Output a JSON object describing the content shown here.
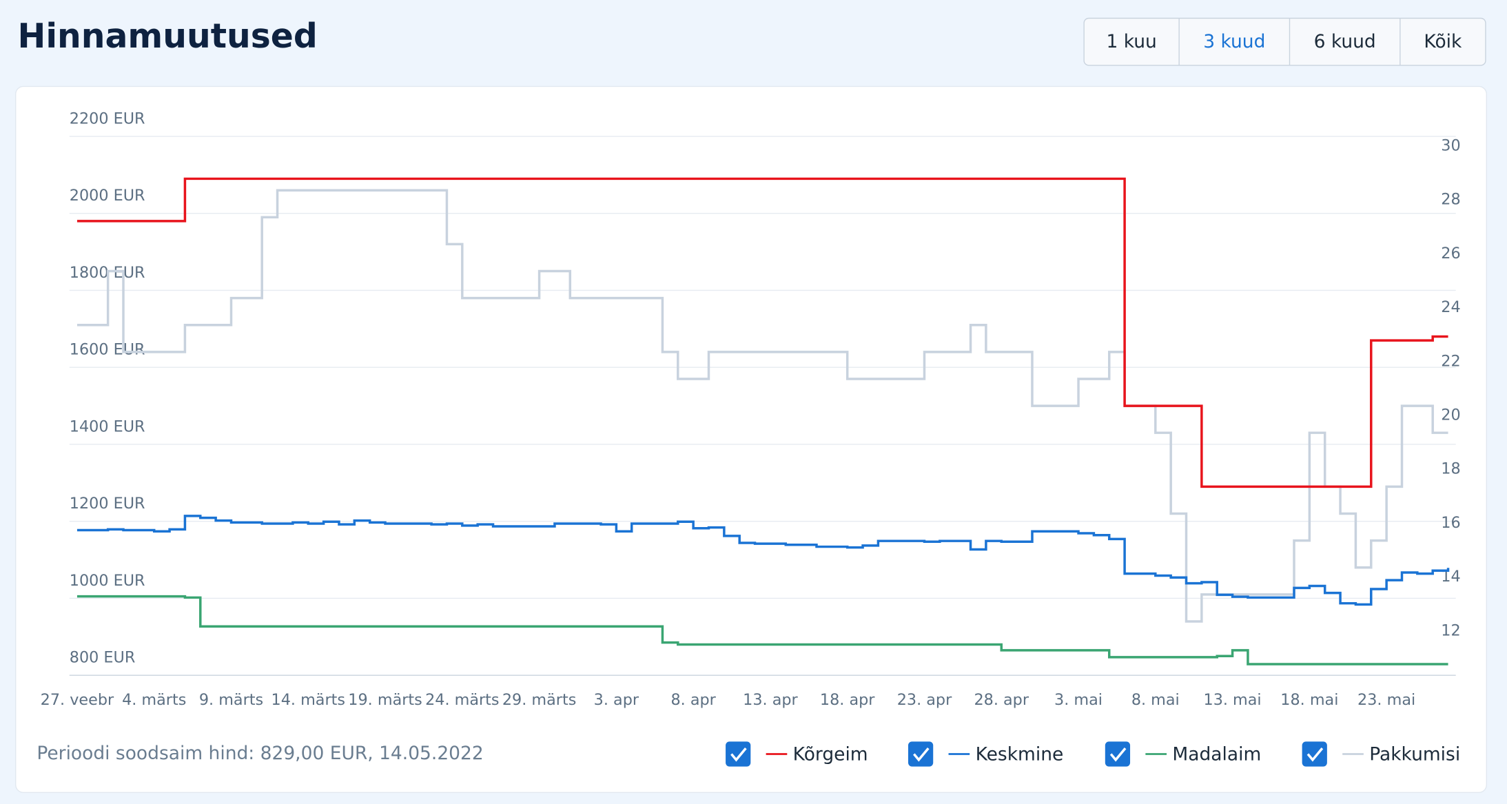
{
  "header": {
    "title": "Hinnamuutused",
    "ranges": [
      "1 kuu",
      "3 kuud",
      "6 kuud",
      "Kõik"
    ],
    "active_range": 1
  },
  "chart_data": {
    "type": "line",
    "step": true,
    "footer_note": "Perioodi soodsaim hind: 829,00 EUR, 14.05.2022",
    "categories": [
      "27. veebr",
      null,
      null,
      null,
      null,
      "4. märts",
      null,
      null,
      null,
      null,
      "9. märts",
      null,
      null,
      null,
      null,
      "14. märts",
      null,
      null,
      null,
      null,
      "19. märts",
      null,
      null,
      null,
      null,
      "24. märts",
      null,
      null,
      null,
      null,
      "29. märts",
      null,
      null,
      null,
      null,
      "3. apr",
      null,
      null,
      null,
      null,
      "8. apr",
      null,
      null,
      null,
      null,
      "13. apr",
      null,
      null,
      null,
      null,
      "18. apr",
      null,
      null,
      null,
      null,
      "23. apr",
      null,
      null,
      null,
      null,
      "28. apr",
      null,
      null,
      null,
      null,
      "3. mai",
      null,
      null,
      null,
      null,
      "8. mai",
      null,
      null,
      null,
      null,
      "13. mai",
      null,
      null,
      null,
      null,
      "18. mai",
      null,
      null,
      null,
      null,
      "23. mai",
      null,
      null,
      null,
      null
    ],
    "ylim": [
      800,
      2200
    ],
    "yticks": [
      {
        "value": 800,
        "label": "800 EUR"
      },
      {
        "value": 1000,
        "label": "1000 EUR"
      },
      {
        "value": 1200,
        "label": "1200 EUR"
      },
      {
        "value": 1400,
        "label": "1400 EUR"
      },
      {
        "value": 1600,
        "label": "1600 EUR"
      },
      {
        "value": 1800,
        "label": "1800 EUR"
      },
      {
        "value": 2000,
        "label": "2000 EUR"
      },
      {
        "value": 2200,
        "label": "2200 EUR"
      }
    ],
    "y2lim": [
      10,
      30
    ],
    "y2ticks": [
      12,
      14,
      16,
      18,
      20,
      22,
      24,
      26,
      28,
      30
    ],
    "grid": true,
    "series": [
      {
        "name": "Kõrgeim",
        "color": "#e8141c",
        "values": [
          1980,
          1980,
          1980,
          1980,
          1980,
          1980,
          1980,
          2090,
          2090,
          2090,
          2090,
          2090,
          2090,
          2090,
          2090,
          2090,
          2090,
          2090,
          2090,
          2090,
          2090,
          2090,
          2090,
          2090,
          2090,
          2090,
          2090,
          2090,
          2090,
          2090,
          2090,
          2090,
          2090,
          2090,
          2090,
          2090,
          2090,
          2090,
          2090,
          2090,
          2090,
          2090,
          2090,
          2090,
          2090,
          2090,
          2090,
          2090,
          2090,
          2090,
          2090,
          2090,
          2090,
          2090,
          2090,
          2090,
          2090,
          2090,
          2090,
          2090,
          2090,
          2090,
          2090,
          2090,
          2090,
          2090,
          2090,
          2090,
          1500,
          1500,
          1500,
          1500,
          1500,
          1290,
          1290,
          1290,
          1290,
          1290,
          1290,
          1290,
          1290,
          1290,
          1290,
          1290,
          1670,
          1670,
          1670,
          1670,
          1680,
          1680
        ]
      },
      {
        "name": "Keskmine",
        "color": "#1a73d4",
        "values": [
          1177,
          1177,
          1179,
          1177,
          1177,
          1174,
          1179,
          1214,
          1209,
          1202,
          1197,
          1197,
          1194,
          1194,
          1197,
          1194,
          1199,
          1192,
          1202,
          1197,
          1194,
          1194,
          1194,
          1192,
          1194,
          1189,
          1192,
          1187,
          1187,
          1187,
          1187,
          1194,
          1194,
          1194,
          1192,
          1174,
          1194,
          1194,
          1194,
          1199,
          1182,
          1184,
          1162,
          1144,
          1142,
          1142,
          1139,
          1139,
          1134,
          1134,
          1132,
          1137,
          1149,
          1149,
          1149,
          1147,
          1149,
          1149,
          1127,
          1149,
          1147,
          1147,
          1174,
          1174,
          1174,
          1169,
          1164,
          1154,
          1064,
          1064,
          1059,
          1054,
          1039,
          1042,
          1009,
          1004,
          1002,
          1002,
          1002,
          1027,
          1032,
          1014,
          987,
          984,
          1024,
          1047,
          1067,
          1064,
          1072,
          1079
        ]
      },
      {
        "name": "Madalaim",
        "color": "#3aa572",
        "values": [
          1005,
          1005,
          1005,
          1005,
          1005,
          1005,
          1005,
          1002,
          927,
          927,
          927,
          927,
          927,
          927,
          927,
          927,
          927,
          927,
          927,
          927,
          927,
          927,
          927,
          927,
          927,
          927,
          927,
          927,
          927,
          927,
          927,
          927,
          927,
          927,
          927,
          927,
          927,
          927,
          885,
          880,
          880,
          880,
          880,
          880,
          880,
          880,
          880,
          880,
          880,
          880,
          880,
          880,
          880,
          880,
          880,
          880,
          880,
          880,
          880,
          880,
          865,
          865,
          865,
          865,
          865,
          865,
          865,
          847,
          847,
          847,
          847,
          847,
          847,
          847,
          850,
          865,
          829,
          829,
          829,
          829,
          829,
          829,
          829,
          829,
          829,
          829,
          829,
          829,
          829,
          829
        ]
      },
      {
        "name": "Pakkumisi",
        "color": "#c8d2de",
        "axis": "y2",
        "values": [
          23,
          23,
          25,
          22,
          22,
          22,
          22,
          23,
          23,
          23,
          24,
          24,
          27,
          28,
          28,
          28,
          28,
          28,
          28,
          28,
          28,
          28,
          28,
          28,
          26,
          24,
          24,
          24,
          24,
          24,
          25,
          25,
          24,
          24,
          24,
          24,
          24,
          24,
          22,
          21,
          21,
          22,
          22,
          22,
          22,
          22,
          22,
          22,
          22,
          22,
          21,
          21,
          21,
          21,
          21,
          22,
          22,
          22,
          23,
          22,
          22,
          22,
          20,
          20,
          20,
          21,
          21,
          22,
          20,
          20,
          19,
          16,
          12,
          13,
          13,
          13,
          13,
          13,
          13,
          15,
          19,
          17,
          16,
          14,
          15,
          17,
          20,
          20,
          19,
          19
        ]
      }
    ]
  }
}
